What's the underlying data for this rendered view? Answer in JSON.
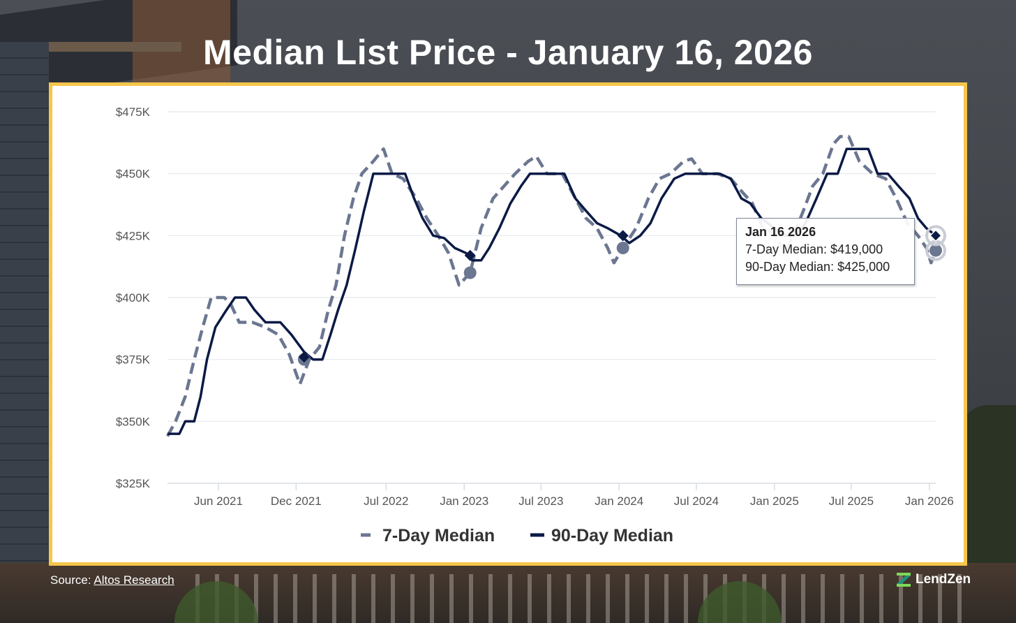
{
  "title": "Median List Price - January 16, 2026",
  "source": {
    "prefix": "Source:",
    "link_text": "Altos Research"
  },
  "brand": {
    "name": "LendZen",
    "icon": "lendzen-logo-icon",
    "colors": [
      "#7ed957",
      "#1f8f7a"
    ]
  },
  "colors": {
    "seven_day": "#6b7691",
    "ninety_day": "#0b1a45",
    "frame": "#f5c64a",
    "grid": "#e6e8ee"
  },
  "tooltip": {
    "date": "Jan 16 2026",
    "line1": "7-Day Median: $419,000",
    "line2": "90-Day Median: $425,000"
  },
  "chart_data": {
    "type": "line",
    "title": "Median List Price - January 16, 2026",
    "xlabel": "",
    "ylabel": "",
    "x_range": [
      "2021-02-01",
      "2026-01-16"
    ],
    "ylim": [
      325000,
      475000
    ],
    "yticks": [
      325000,
      350000,
      375000,
      400000,
      425000,
      450000,
      475000
    ],
    "ytick_labels": [
      "$325K",
      "$350K",
      "$375K",
      "$400K",
      "$425K",
      "$450K",
      "$475K"
    ],
    "xticks": [
      "2021-06-01",
      "2021-12-01",
      "2022-07-01",
      "2023-01-01",
      "2023-07-01",
      "2024-01-01",
      "2024-07-01",
      "2025-01-01",
      "2025-07-01",
      "2026-01-01"
    ],
    "xtick_labels": [
      "Jun 2021",
      "Dec 2021",
      "Jul 2022",
      "Jan 2023",
      "Jul 2023",
      "Jan 2024",
      "Jul 2024",
      "Jan 2025",
      "Jul 2025",
      "Jan 2026"
    ],
    "grid": true,
    "legend": "bottom-center",
    "series": [
      {
        "name": "7-Day Median",
        "style": "dashed",
        "points": [
          [
            "2021-02-01",
            344000
          ],
          [
            "2021-02-20",
            350000
          ],
          [
            "2021-03-15",
            360000
          ],
          [
            "2021-04-05",
            375000
          ],
          [
            "2021-04-25",
            388000
          ],
          [
            "2021-05-15",
            400000
          ],
          [
            "2021-06-15",
            400000
          ],
          [
            "2021-07-01",
            397000
          ],
          [
            "2021-07-20",
            390000
          ],
          [
            "2021-08-20",
            390000
          ],
          [
            "2021-09-20",
            388000
          ],
          [
            "2021-10-20",
            385000
          ],
          [
            "2021-11-15",
            377000
          ],
          [
            "2021-12-10",
            365000
          ],
          [
            "2022-01-01",
            375000
          ],
          [
            "2022-01-25",
            380000
          ],
          [
            "2022-02-15",
            395000
          ],
          [
            "2022-03-05",
            405000
          ],
          [
            "2022-03-25",
            425000
          ],
          [
            "2022-04-15",
            440000
          ],
          [
            "2022-05-05",
            450000
          ],
          [
            "2022-06-01",
            455000
          ],
          [
            "2022-06-25",
            460000
          ],
          [
            "2022-07-15",
            450000
          ],
          [
            "2022-08-10",
            448000
          ],
          [
            "2022-09-10",
            440000
          ],
          [
            "2022-10-05",
            432000
          ],
          [
            "2022-11-01",
            425000
          ],
          [
            "2022-11-25",
            418000
          ],
          [
            "2022-12-20",
            405000
          ],
          [
            "2023-01-15",
            410000
          ],
          [
            "2023-02-10",
            428000
          ],
          [
            "2023-03-10",
            440000
          ],
          [
            "2023-04-05",
            445000
          ],
          [
            "2023-05-01",
            450000
          ],
          [
            "2023-06-01",
            455000
          ],
          [
            "2023-06-20",
            457000
          ],
          [
            "2023-07-15",
            450000
          ],
          [
            "2023-08-20",
            450000
          ],
          [
            "2023-09-20",
            440000
          ],
          [
            "2023-10-15",
            432000
          ],
          [
            "2023-11-10",
            428000
          ],
          [
            "2023-12-05",
            420000
          ],
          [
            "2023-12-20",
            414000
          ],
          [
            "2024-01-10",
            420000
          ],
          [
            "2024-02-10",
            428000
          ],
          [
            "2024-03-10",
            440000
          ],
          [
            "2024-04-05",
            448000
          ],
          [
            "2024-05-01",
            450000
          ],
          [
            "2024-06-01",
            455000
          ],
          [
            "2024-06-20",
            456000
          ],
          [
            "2024-07-15",
            450000
          ],
          [
            "2024-08-20",
            450000
          ],
          [
            "2024-09-20",
            448000
          ],
          [
            "2024-10-15",
            443000
          ],
          [
            "2024-11-10",
            438000
          ],
          [
            "2024-12-05",
            428000
          ],
          [
            "2025-01-05",
            425000
          ],
          [
            "2025-01-25",
            418000
          ],
          [
            "2025-02-15",
            425000
          ],
          [
            "2025-03-10",
            435000
          ],
          [
            "2025-04-01",
            445000
          ],
          [
            "2025-04-25",
            450000
          ],
          [
            "2025-05-20",
            462000
          ],
          [
            "2025-06-05",
            465000
          ],
          [
            "2025-06-25",
            465000
          ],
          [
            "2025-07-20",
            455000
          ],
          [
            "2025-08-20",
            450000
          ],
          [
            "2025-09-20",
            448000
          ],
          [
            "2025-10-15",
            440000
          ],
          [
            "2025-11-10",
            430000
          ],
          [
            "2025-12-05",
            425000
          ],
          [
            "2025-12-25",
            420000
          ],
          [
            "2026-01-05",
            414000
          ],
          [
            "2026-01-16",
            419000
          ]
        ]
      },
      {
        "name": "90-Day Median",
        "style": "solid",
        "points": [
          [
            "2021-02-01",
            345000
          ],
          [
            "2021-03-01",
            345000
          ],
          [
            "2021-03-15",
            350000
          ],
          [
            "2021-04-05",
            350000
          ],
          [
            "2021-04-20",
            360000
          ],
          [
            "2021-05-05",
            375000
          ],
          [
            "2021-05-25",
            388000
          ],
          [
            "2021-06-20",
            395000
          ],
          [
            "2021-07-10",
            400000
          ],
          [
            "2021-08-05",
            400000
          ],
          [
            "2021-08-25",
            395000
          ],
          [
            "2021-09-20",
            390000
          ],
          [
            "2021-10-25",
            390000
          ],
          [
            "2021-11-20",
            385000
          ],
          [
            "2021-12-20",
            378000
          ],
          [
            "2022-01-10",
            375000
          ],
          [
            "2022-02-01",
            375000
          ],
          [
            "2022-02-20",
            385000
          ],
          [
            "2022-03-10",
            395000
          ],
          [
            "2022-03-30",
            405000
          ],
          [
            "2022-04-20",
            420000
          ],
          [
            "2022-05-10",
            435000
          ],
          [
            "2022-06-01",
            450000
          ],
          [
            "2022-07-01",
            450000
          ],
          [
            "2022-08-15",
            450000
          ],
          [
            "2022-09-05",
            440000
          ],
          [
            "2022-09-25",
            432000
          ],
          [
            "2022-10-20",
            425000
          ],
          [
            "2022-11-15",
            424000
          ],
          [
            "2022-12-10",
            420000
          ],
          [
            "2023-01-05",
            418000
          ],
          [
            "2023-01-20",
            415000
          ],
          [
            "2023-02-10",
            415000
          ],
          [
            "2023-03-01",
            420000
          ],
          [
            "2023-03-25",
            428000
          ],
          [
            "2023-04-20",
            438000
          ],
          [
            "2023-05-15",
            445000
          ],
          [
            "2023-06-05",
            450000
          ],
          [
            "2023-07-15",
            450000
          ],
          [
            "2023-08-25",
            450000
          ],
          [
            "2023-09-20",
            440000
          ],
          [
            "2023-10-15",
            435000
          ],
          [
            "2023-11-10",
            430000
          ],
          [
            "2023-12-05",
            428000
          ],
          [
            "2024-01-05",
            425000
          ],
          [
            "2024-01-25",
            422000
          ],
          [
            "2024-02-20",
            425000
          ],
          [
            "2024-03-15",
            430000
          ],
          [
            "2024-04-10",
            440000
          ],
          [
            "2024-05-10",
            448000
          ],
          [
            "2024-06-05",
            450000
          ],
          [
            "2024-07-15",
            450000
          ],
          [
            "2024-08-25",
            450000
          ],
          [
            "2024-09-20",
            448000
          ],
          [
            "2024-10-15",
            440000
          ],
          [
            "2024-11-05",
            438000
          ],
          [
            "2024-12-01",
            432000
          ],
          [
            "2025-01-01",
            428000
          ],
          [
            "2025-01-25",
            425000
          ],
          [
            "2025-02-20",
            425000
          ],
          [
            "2025-03-15",
            430000
          ],
          [
            "2025-04-10",
            440000
          ],
          [
            "2025-05-05",
            450000
          ],
          [
            "2025-05-30",
            450000
          ],
          [
            "2025-06-20",
            460000
          ],
          [
            "2025-07-15",
            460000
          ],
          [
            "2025-08-10",
            460000
          ],
          [
            "2025-09-01",
            450000
          ],
          [
            "2025-09-25",
            450000
          ],
          [
            "2025-10-20",
            445000
          ],
          [
            "2025-11-15",
            440000
          ],
          [
            "2025-12-05",
            432000
          ],
          [
            "2025-12-25",
            428000
          ],
          [
            "2026-01-16",
            425000
          ]
        ]
      }
    ],
    "markers": {
      "7-Day Median": [
        [
          "2021-12-20",
          375000
        ],
        [
          "2023-01-15",
          410000
        ],
        [
          "2024-01-10",
          420000
        ],
        [
          "2026-01-16",
          419000
        ]
      ],
      "90-Day Median": [
        [
          "2021-12-20",
          376000
        ],
        [
          "2023-01-15",
          417000
        ],
        [
          "2024-01-10",
          425000
        ],
        [
          "2026-01-16",
          425000
        ]
      ]
    }
  }
}
